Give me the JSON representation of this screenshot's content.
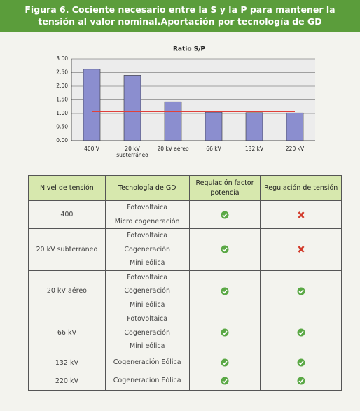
{
  "header": {
    "title": "Figura 6. Cociente necesario entre la S y la P para mantener la tensión al valor nominal.Aportación por tecnología de GD"
  },
  "chart_data": {
    "type": "bar",
    "title": "Ratio S/P",
    "categories": [
      "400 V",
      "20 kV subterráneo",
      "20 kV aéreo",
      "66 kV",
      "132 kV",
      "220 kV"
    ],
    "values": [
      2.62,
      2.4,
      1.43,
      1.05,
      1.03,
      1.02
    ],
    "color": "#8b8ecf",
    "ylim": [
      0,
      3
    ],
    "yticks": [
      {
        "value": 0,
        "label": "0.00"
      },
      {
        "value": 0.5,
        "label": "0.50"
      },
      {
        "value": 1,
        "label": "1.00"
      },
      {
        "value": 1.5,
        "label": "1.50"
      },
      {
        "value": 2,
        "label": "2.00"
      },
      {
        "value": 2.5,
        "label": "2.50"
      },
      {
        "value": 3,
        "label": "3.00"
      }
    ],
    "grid": true,
    "reference_line": {
      "value": 1.07,
      "color": "#e0403a"
    }
  },
  "table": {
    "header": [
      "Nivel de tensión",
      "Tecnología de GD",
      "Regulación factor potencia",
      "Regulación de tensión"
    ],
    "rows": [
      [
        "400",
        [
          "Fotovoltaica",
          "Micro cogeneración"
        ],
        true,
        false
      ],
      [
        "20 kV subterráneo",
        [
          "Fotovoltaica",
          "Cogeneración",
          "Mini eólica"
        ],
        true,
        false
      ],
      [
        "20 kV aéreo",
        [
          "Fotovoltaica",
          "Cogeneración",
          "Mini eólica"
        ],
        true,
        true
      ],
      [
        "66 kV",
        [
          "Fotovoltaica",
          "Cogeneración",
          "Mini eólica"
        ],
        true,
        true
      ],
      [
        "132 kV",
        [
          "Cogeneración Eólica"
        ],
        true,
        true
      ],
      [
        "220 kV",
        [
          "Cogeneración Eólica"
        ],
        true,
        true
      ]
    ]
  }
}
